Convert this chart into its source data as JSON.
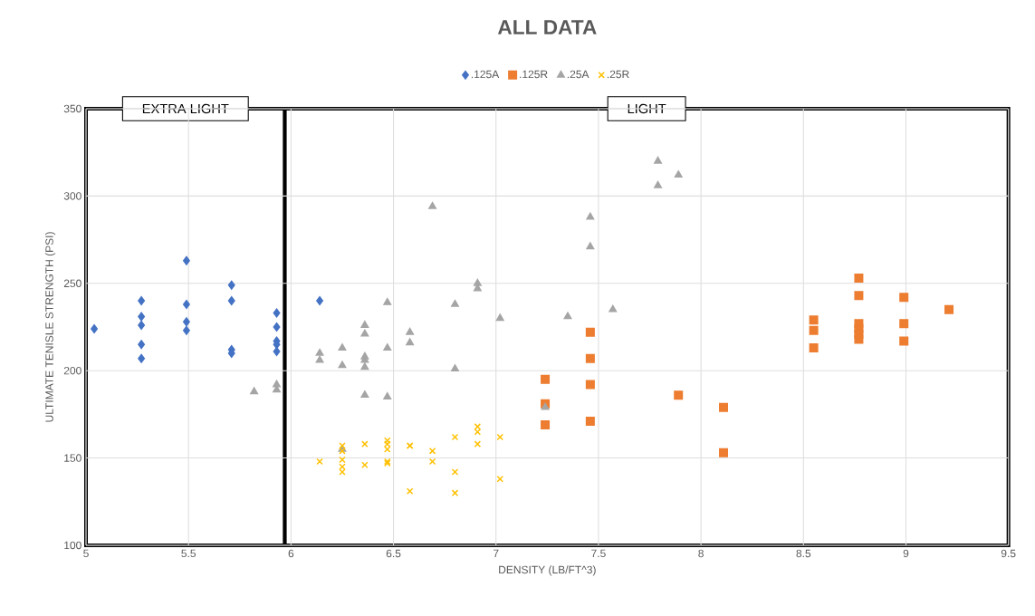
{
  "chart_data": {
    "type": "scatter",
    "title": "ALL DATA",
    "xlabel": "DENSITY (LB/FT^3)",
    "ylabel": "ULTIMATE TENISLE STRENGTH (PSI)",
    "xlim": [
      5,
      9.5
    ],
    "ylim": [
      100,
      350
    ],
    "xticks": [
      5,
      5.5,
      6,
      6.5,
      7,
      7.5,
      8,
      8.5,
      9,
      9.5
    ],
    "yticks": [
      100,
      150,
      200,
      250,
      300,
      350
    ],
    "grid": true,
    "legend": "top",
    "bands": [
      {
        "axis": "x",
        "from": 5,
        "to": 5.97,
        "label": "EXTRA LIGHT",
        "color": "#000000"
      },
      {
        "axis": "x",
        "from": 5.97,
        "to": 9.5,
        "label": "LIGHT",
        "color": "#000000"
      }
    ],
    "series": [
      {
        "name": ".125A",
        "color": "#4472c4",
        "marker": "diamond",
        "x": [
          5.04,
          5.27,
          5.27,
          5.27,
          5.27,
          5.27,
          5.49,
          5.49,
          5.49,
          5.49,
          5.71,
          5.71,
          5.71,
          5.71,
          5.93,
          5.93,
          5.93,
          5.93,
          5.93,
          6.14
        ],
        "values": [
          224,
          240,
          231,
          226,
          215,
          207,
          263,
          238,
          228,
          223,
          249,
          240,
          212,
          210,
          233,
          225,
          217,
          215,
          211,
          240
        ]
      },
      {
        "name": ".125R",
        "color": "#ed7d31",
        "marker": "square",
        "x": [
          7.24,
          7.24,
          7.24,
          7.46,
          7.46,
          7.46,
          7.46,
          7.89,
          8.11,
          8.11,
          8.55,
          8.55,
          8.55,
          8.77,
          8.77,
          8.77,
          8.77,
          8.77,
          8.77,
          8.99,
          8.99,
          8.99,
          9.21
        ],
        "values": [
          195,
          181,
          169,
          222,
          207,
          192,
          171,
          186,
          179,
          153,
          229,
          223,
          213,
          253,
          243,
          227,
          224,
          221,
          218,
          242,
          227,
          217,
          235
        ]
      },
      {
        "name": ".25A",
        "color": "#a5a5a5",
        "marker": "triangle",
        "x": [
          5.82,
          5.93,
          5.93,
          6.14,
          6.14,
          6.25,
          6.25,
          6.25,
          6.36,
          6.36,
          6.36,
          6.36,
          6.36,
          6.36,
          6.47,
          6.47,
          6.47,
          6.58,
          6.58,
          6.69,
          6.8,
          6.8,
          6.91,
          6.91,
          7.02,
          7.24,
          7.35,
          7.46,
          7.46,
          7.57,
          7.79,
          7.79,
          7.89
        ],
        "values": [
          188,
          192,
          189,
          210,
          206,
          213,
          203,
          155,
          226,
          221,
          208,
          206,
          202,
          186,
          239,
          213,
          185,
          222,
          216,
          294,
          238,
          201,
          250,
          247,
          230,
          179,
          231,
          288,
          271,
          235,
          320,
          306,
          312
        ]
      },
      {
        "name": ".25R",
        "color": "#ffc000",
        "marker": "cross",
        "x": [
          6.14,
          6.25,
          6.25,
          6.25,
          6.25,
          6.25,
          6.36,
          6.36,
          6.47,
          6.47,
          6.47,
          6.47,
          6.47,
          6.58,
          6.58,
          6.58,
          6.69,
          6.69,
          6.8,
          6.8,
          6.8,
          6.91,
          6.91,
          6.91,
          7.02,
          7.02
        ],
        "values": [
          148,
          157,
          154,
          149,
          145,
          142,
          158,
          146,
          160,
          158,
          155,
          148,
          147,
          157,
          157,
          131,
          154,
          148,
          162,
          142,
          130,
          168,
          165,
          158,
          162,
          138
        ]
      }
    ]
  }
}
